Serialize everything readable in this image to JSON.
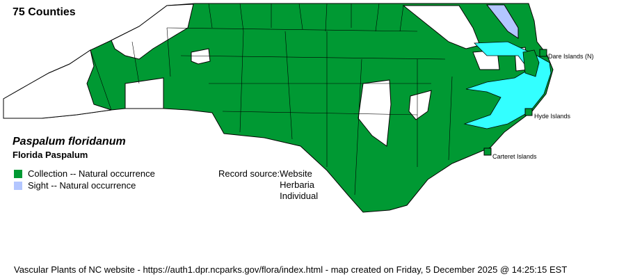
{
  "county_count": "75 Counties",
  "species": {
    "scientific_name": "Paspalum floridanum",
    "common_name": "Florida Paspalum"
  },
  "legend": [
    {
      "label": "Collection -- Natural occurrence",
      "color": "#009933"
    },
    {
      "label": "Sight -- Natural occurrence",
      "color": "#b3c6ff"
    }
  ],
  "record_source": {
    "label": "Record source:",
    "values": [
      "Website",
      "Herbaria",
      "Individual"
    ]
  },
  "islands": [
    "Dare Islands (N)",
    "Hyde Islands",
    "Carteret Islands"
  ],
  "colors": {
    "present": "#009933",
    "absent": "#ffffff",
    "sight": "#b3c6ff",
    "water": "#33ffff"
  },
  "footer": "Vascular Plants of NC website - https://auth1.dpr.ncparks.gov/flora/index.html - map created on Friday, 5 December 2025 @ 14:25:15 EST"
}
